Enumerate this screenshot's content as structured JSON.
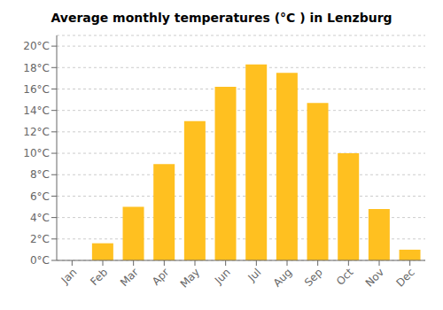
{
  "chart_data": {
    "type": "bar",
    "title": "Average monthly temperatures (°C ) in Lenzburg",
    "categories": [
      "Jan",
      "Feb",
      "Mar",
      "Apr",
      "May",
      "Jun",
      "Jul",
      "Aug",
      "Sep",
      "Oct",
      "Nov",
      "Dec"
    ],
    "values": [
      0.0,
      1.6,
      5.0,
      9.0,
      13.0,
      16.2,
      18.3,
      17.5,
      14.7,
      10.0,
      4.8,
      1.0
    ],
    "color": "#FFC020",
    "ylim": [
      0,
      21
    ],
    "yticks": [
      {
        "value": 0,
        "label": "0°C"
      },
      {
        "value": 2,
        "label": "2°C"
      },
      {
        "value": 4,
        "label": "4°C"
      },
      {
        "value": 6,
        "label": "6°C"
      },
      {
        "value": 8,
        "label": "8°C"
      },
      {
        "value": 10,
        "label": "10°C"
      },
      {
        "value": 12,
        "label": "12°C"
      },
      {
        "value": 14,
        "label": "14°C"
      },
      {
        "value": 16,
        "label": "16°C"
      },
      {
        "value": 18,
        "label": "18°C"
      },
      {
        "value": 20,
        "label": "20°C"
      }
    ],
    "grid": true
  }
}
